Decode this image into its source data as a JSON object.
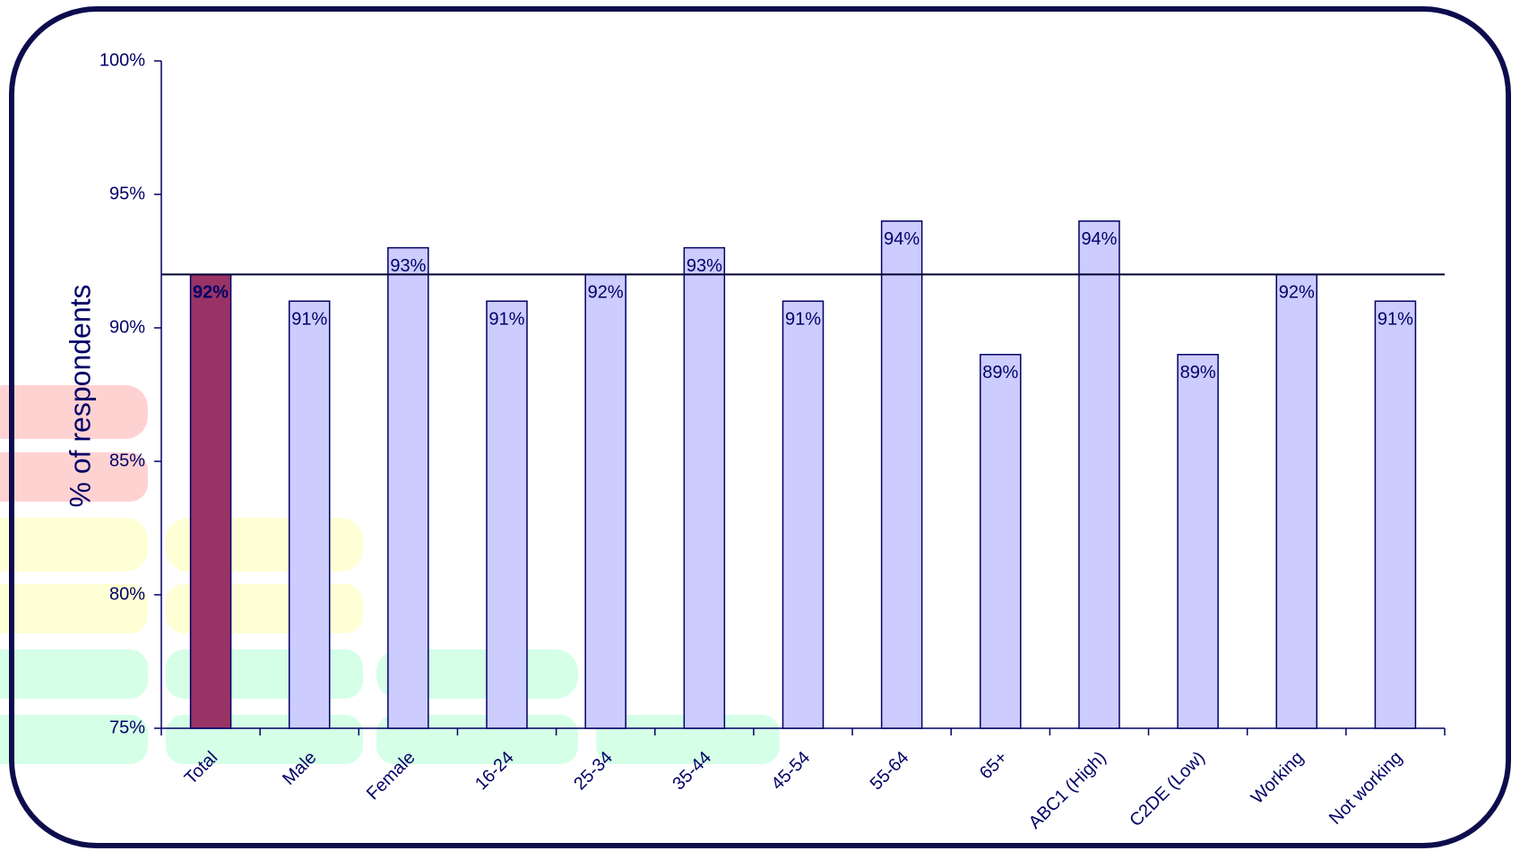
{
  "chart_data": {
    "type": "bar",
    "y_label": "% of respondents",
    "categories": [
      "Total",
      "Male",
      "Female",
      "16-24",
      "25-34",
      "35-44",
      "45-54",
      "55-64",
      "65+",
      "ABC1 (High)",
      "C2DE (Low)",
      "Working",
      "Not working"
    ],
    "values": [
      92,
      91,
      93,
      91,
      92,
      93,
      91,
      94,
      89,
      94,
      89,
      92,
      91
    ],
    "value_labels": [
      "92%",
      "91%",
      "93%",
      "91%",
      "92%",
      "93%",
      "91%",
      "94%",
      "89%",
      "94%",
      "89%",
      "92%",
      "91%"
    ],
    "colors": [
      "#993366",
      "#ccccff",
      "#ccccff",
      "#ccccff",
      "#ccccff",
      "#ccccff",
      "#ccccff",
      "#ccccff",
      "#ccccff",
      "#ccccff",
      "#ccccff",
      "#ccccff",
      "#ccccff"
    ],
    "ylim": [
      75,
      100
    ],
    "yticks": [
      {
        "value": 75,
        "label": "75%"
      },
      {
        "value": 80,
        "label": "80%"
      },
      {
        "value": 85,
        "label": "85%"
      },
      {
        "value": 90,
        "label": "90%"
      },
      {
        "value": 95,
        "label": "95%"
      },
      {
        "value": 100,
        "label": "100%"
      }
    ]
  }
}
